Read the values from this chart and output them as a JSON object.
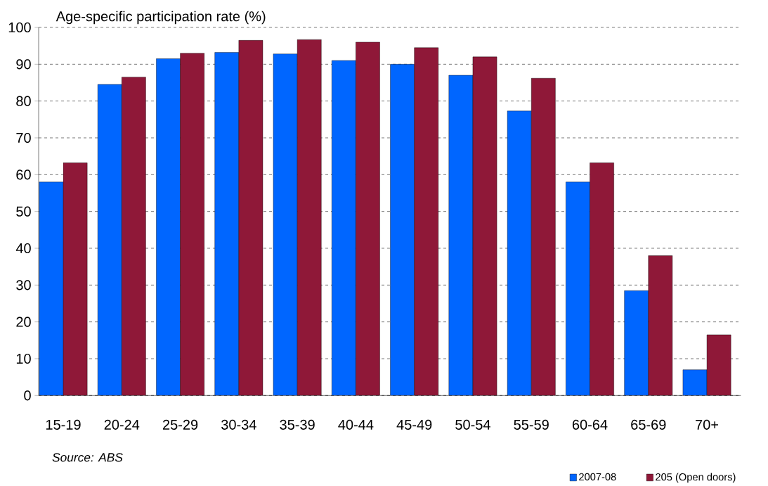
{
  "chart_data": {
    "type": "bar",
    "ylabel": "Age-specific participation rate (%)",
    "categories": [
      "15-19",
      "20-24",
      "25-29",
      "30-34",
      "35-39",
      "40-44",
      "45-49",
      "50-54",
      "55-59",
      "60-64",
      "65-69",
      "70+"
    ],
    "series": [
      {
        "name": "2007-08",
        "color": "#0066ff",
        "values": [
          58,
          84.5,
          91.5,
          93.2,
          92.8,
          91,
          90,
          87,
          77.3,
          58,
          28.5,
          7
        ]
      },
      {
        "name": "205 (Open doors)",
        "color": "#8f1838",
        "values": [
          63.2,
          86.5,
          93,
          96.5,
          96.7,
          96,
          94.5,
          92,
          86.2,
          63.2,
          38,
          16.5
        ]
      }
    ],
    "ylim": [
      0,
      100
    ],
    "yticks": [
      0,
      10,
      20,
      30,
      40,
      50,
      60,
      70,
      80,
      90,
      100
    ],
    "grid": "y",
    "legend": "bottom right",
    "annotations": [
      "Source:  ABS"
    ]
  }
}
